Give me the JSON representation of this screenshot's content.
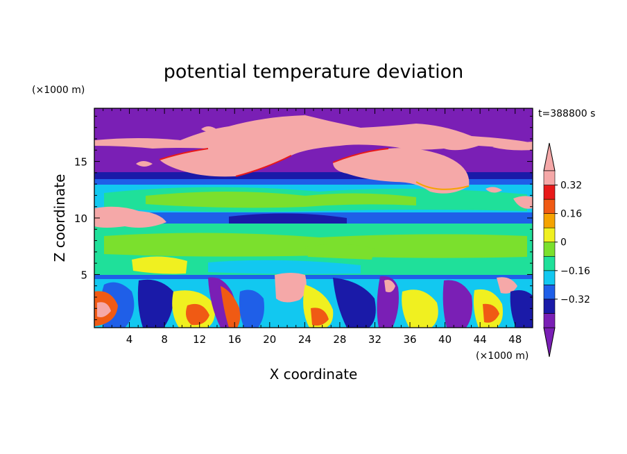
{
  "chart_data": {
    "type": "heatmap",
    "title": "potential temperature deviation",
    "xlabel": "X coordinate",
    "ylabel": "Z coordinate",
    "x_unit_label": "(×1000 m)",
    "y_unit_label": "(×1000 m)",
    "time_label": "t=388800 s",
    "xlim": [
      0,
      50
    ],
    "ylim": [
      0.3,
      19.7
    ],
    "x_ticks": [
      4,
      8,
      12,
      16,
      20,
      24,
      28,
      32,
      36,
      40,
      44,
      48
    ],
    "y_ticks": [
      5,
      10,
      15
    ],
    "colorbar": {
      "levels": [
        -0.4,
        -0.32,
        -0.24,
        -0.16,
        -0.08,
        0,
        0.08,
        0.16,
        0.24,
        0.32,
        0.4
      ],
      "labeled_levels": [
        -0.32,
        -0.16,
        0,
        0.16,
        0.32
      ],
      "labels": [
        "−0.32",
        "−0.16",
        "0",
        "0.16",
        "0.32"
      ],
      "colors": [
        "#7a1fb5",
        "#1a1aa8",
        "#1f5fe8",
        "#12c8f0",
        "#1fe09a",
        "#7be02d",
        "#f0f020",
        "#f5a300",
        "#f05a14",
        "#e81a1a",
        "#f5a8a8"
      ],
      "under_color": "#7a1fb5",
      "over_color": "#f5a8a8"
    },
    "regions": [
      {
        "z_range": [
          17,
          19.7
        ],
        "value": "below -0.4 (purple) with pink patches above 0.4"
      },
      {
        "z_range": [
          13,
          17
        ],
        "value": "mostly below -0.4, large pink cloud band near x 10-32"
      },
      {
        "z_range": [
          11.5,
          13
        ],
        "value": "-0.16 to 0.08 (cyan to green)"
      },
      {
        "z_range": [
          9.5,
          11
        ],
        "value": "-0.24 to -0.08 (blue to cyan)"
      },
      {
        "z_range": [
          5.5,
          9.5
        ],
        "value": "0 to 0.16 (green to yellow)"
      },
      {
        "z_range": [
          0.3,
          5
        ],
        "value": "mixed -0.4 to 0.4, convective plumes"
      }
    ]
  }
}
